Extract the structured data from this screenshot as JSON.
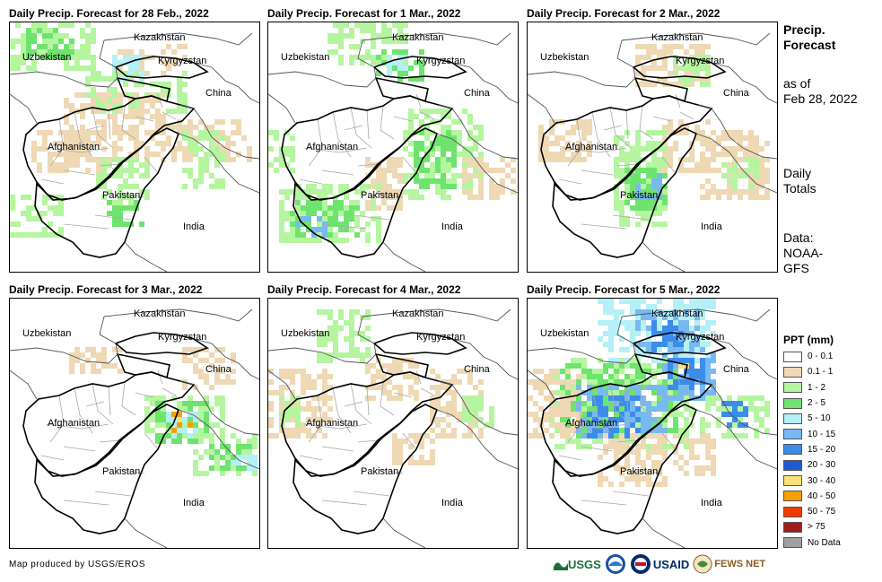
{
  "panels": [
    {
      "title": "Daily Precip. Forecast for 28 Feb., 2022"
    },
    {
      "title": "Daily Precip. Forecast for 1 Mar., 2022"
    },
    {
      "title": "Daily Precip. Forecast for 2 Mar., 2022"
    },
    {
      "title": "Daily Precip. Forecast for 3 Mar., 2022"
    },
    {
      "title": "Daily Precip. Forecast for 4 Mar., 2022"
    },
    {
      "title": "Daily Precip. Forecast for 5 Mar., 2022"
    }
  ],
  "map_labels": {
    "kazakhstan": "Kazakhstan",
    "uzbekistan": "Uzbekistan",
    "kyrgyzstan": "Kyrgyzstan",
    "china": "China",
    "afghanistan": "Afghanistan",
    "pakistan": "Pakistan",
    "india": "India"
  },
  "sidebar": {
    "title_line1": "Precip.",
    "title_line2": "Forecast",
    "asof_line1": "as of",
    "asof_line2": "Feb 28, 2022",
    "totals_line1": "Daily",
    "totals_line2": "Totals",
    "data_line1": "Data:",
    "data_line2": "NOAA-",
    "data_line3": "GFS"
  },
  "legend": {
    "title": "PPT (mm)",
    "items": [
      {
        "label": "0 - 0.1",
        "color": "#ffffff"
      },
      {
        "label": "0.1 - 1",
        "color": "#eed9b4"
      },
      {
        "label": "1 - 2",
        "color": "#b5f5a0"
      },
      {
        "label": "2 - 5",
        "color": "#6ee46e"
      },
      {
        "label": "5 - 10",
        "color": "#b4f0f5"
      },
      {
        "label": "10 - 15",
        "color": "#78b9f2"
      },
      {
        "label": "15 - 20",
        "color": "#3c8ceb"
      },
      {
        "label": "20 - 30",
        "color": "#1e5ad2"
      },
      {
        "label": "30 - 40",
        "color": "#fce17a"
      },
      {
        "label": "40 - 50",
        "color": "#f5a000"
      },
      {
        "label": "50 - 75",
        "color": "#f03c00"
      },
      {
        "label": "> 75",
        "color": "#a01e1e"
      },
      {
        "label": "No Data",
        "color": "#a0a0a0"
      }
    ]
  },
  "credit": "Map produced by USGS/EROS",
  "logos": {
    "usgs": "USGS",
    "usaid": "USAID",
    "fewsnet": "FEWS NET"
  }
}
